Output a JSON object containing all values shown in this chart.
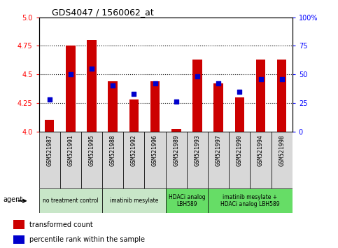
{
  "title": "GDS4047 / 1560062_at",
  "samples": [
    "GSM521987",
    "GSM521991",
    "GSM521995",
    "GSM521988",
    "GSM521992",
    "GSM521996",
    "GSM521989",
    "GSM521993",
    "GSM521997",
    "GSM521990",
    "GSM521994",
    "GSM521998"
  ],
  "bar_values": [
    4.1,
    4.75,
    4.8,
    4.44,
    4.28,
    4.44,
    4.02,
    4.63,
    4.42,
    4.3,
    4.63,
    4.63
  ],
  "percentile_values": [
    28,
    50,
    55,
    40,
    33,
    42,
    26,
    48,
    42,
    35,
    46,
    46
  ],
  "bar_color": "#cc0000",
  "percentile_color": "#0000cc",
  "ymin": 4.0,
  "ymax": 5.0,
  "yticks": [
    4.0,
    4.25,
    4.5,
    4.75,
    5.0
  ],
  "right_yticks": [
    0,
    25,
    50,
    75,
    100
  ],
  "groups": [
    {
      "label": "no treatment control",
      "start": 0,
      "end": 3,
      "color": "#c8e6c8"
    },
    {
      "label": "imatinib mesylate",
      "start": 3,
      "end": 6,
      "color": "#c8e6c8"
    },
    {
      "label": "HDACi analog\nLBH589",
      "start": 6,
      "end": 8,
      "color": "#66dd66"
    },
    {
      "label": "imatinib mesylate +\nHDACi analog LBH589",
      "start": 8,
      "end": 12,
      "color": "#66dd66"
    }
  ],
  "sample_box_color": "#d8d8d8",
  "background_color": "#ffffff",
  "title_color": "#000000",
  "bar_width": 0.45,
  "agent_label": "agent",
  "legend_bar_label": "transformed count",
  "legend_pct_label": "percentile rank within the sample"
}
